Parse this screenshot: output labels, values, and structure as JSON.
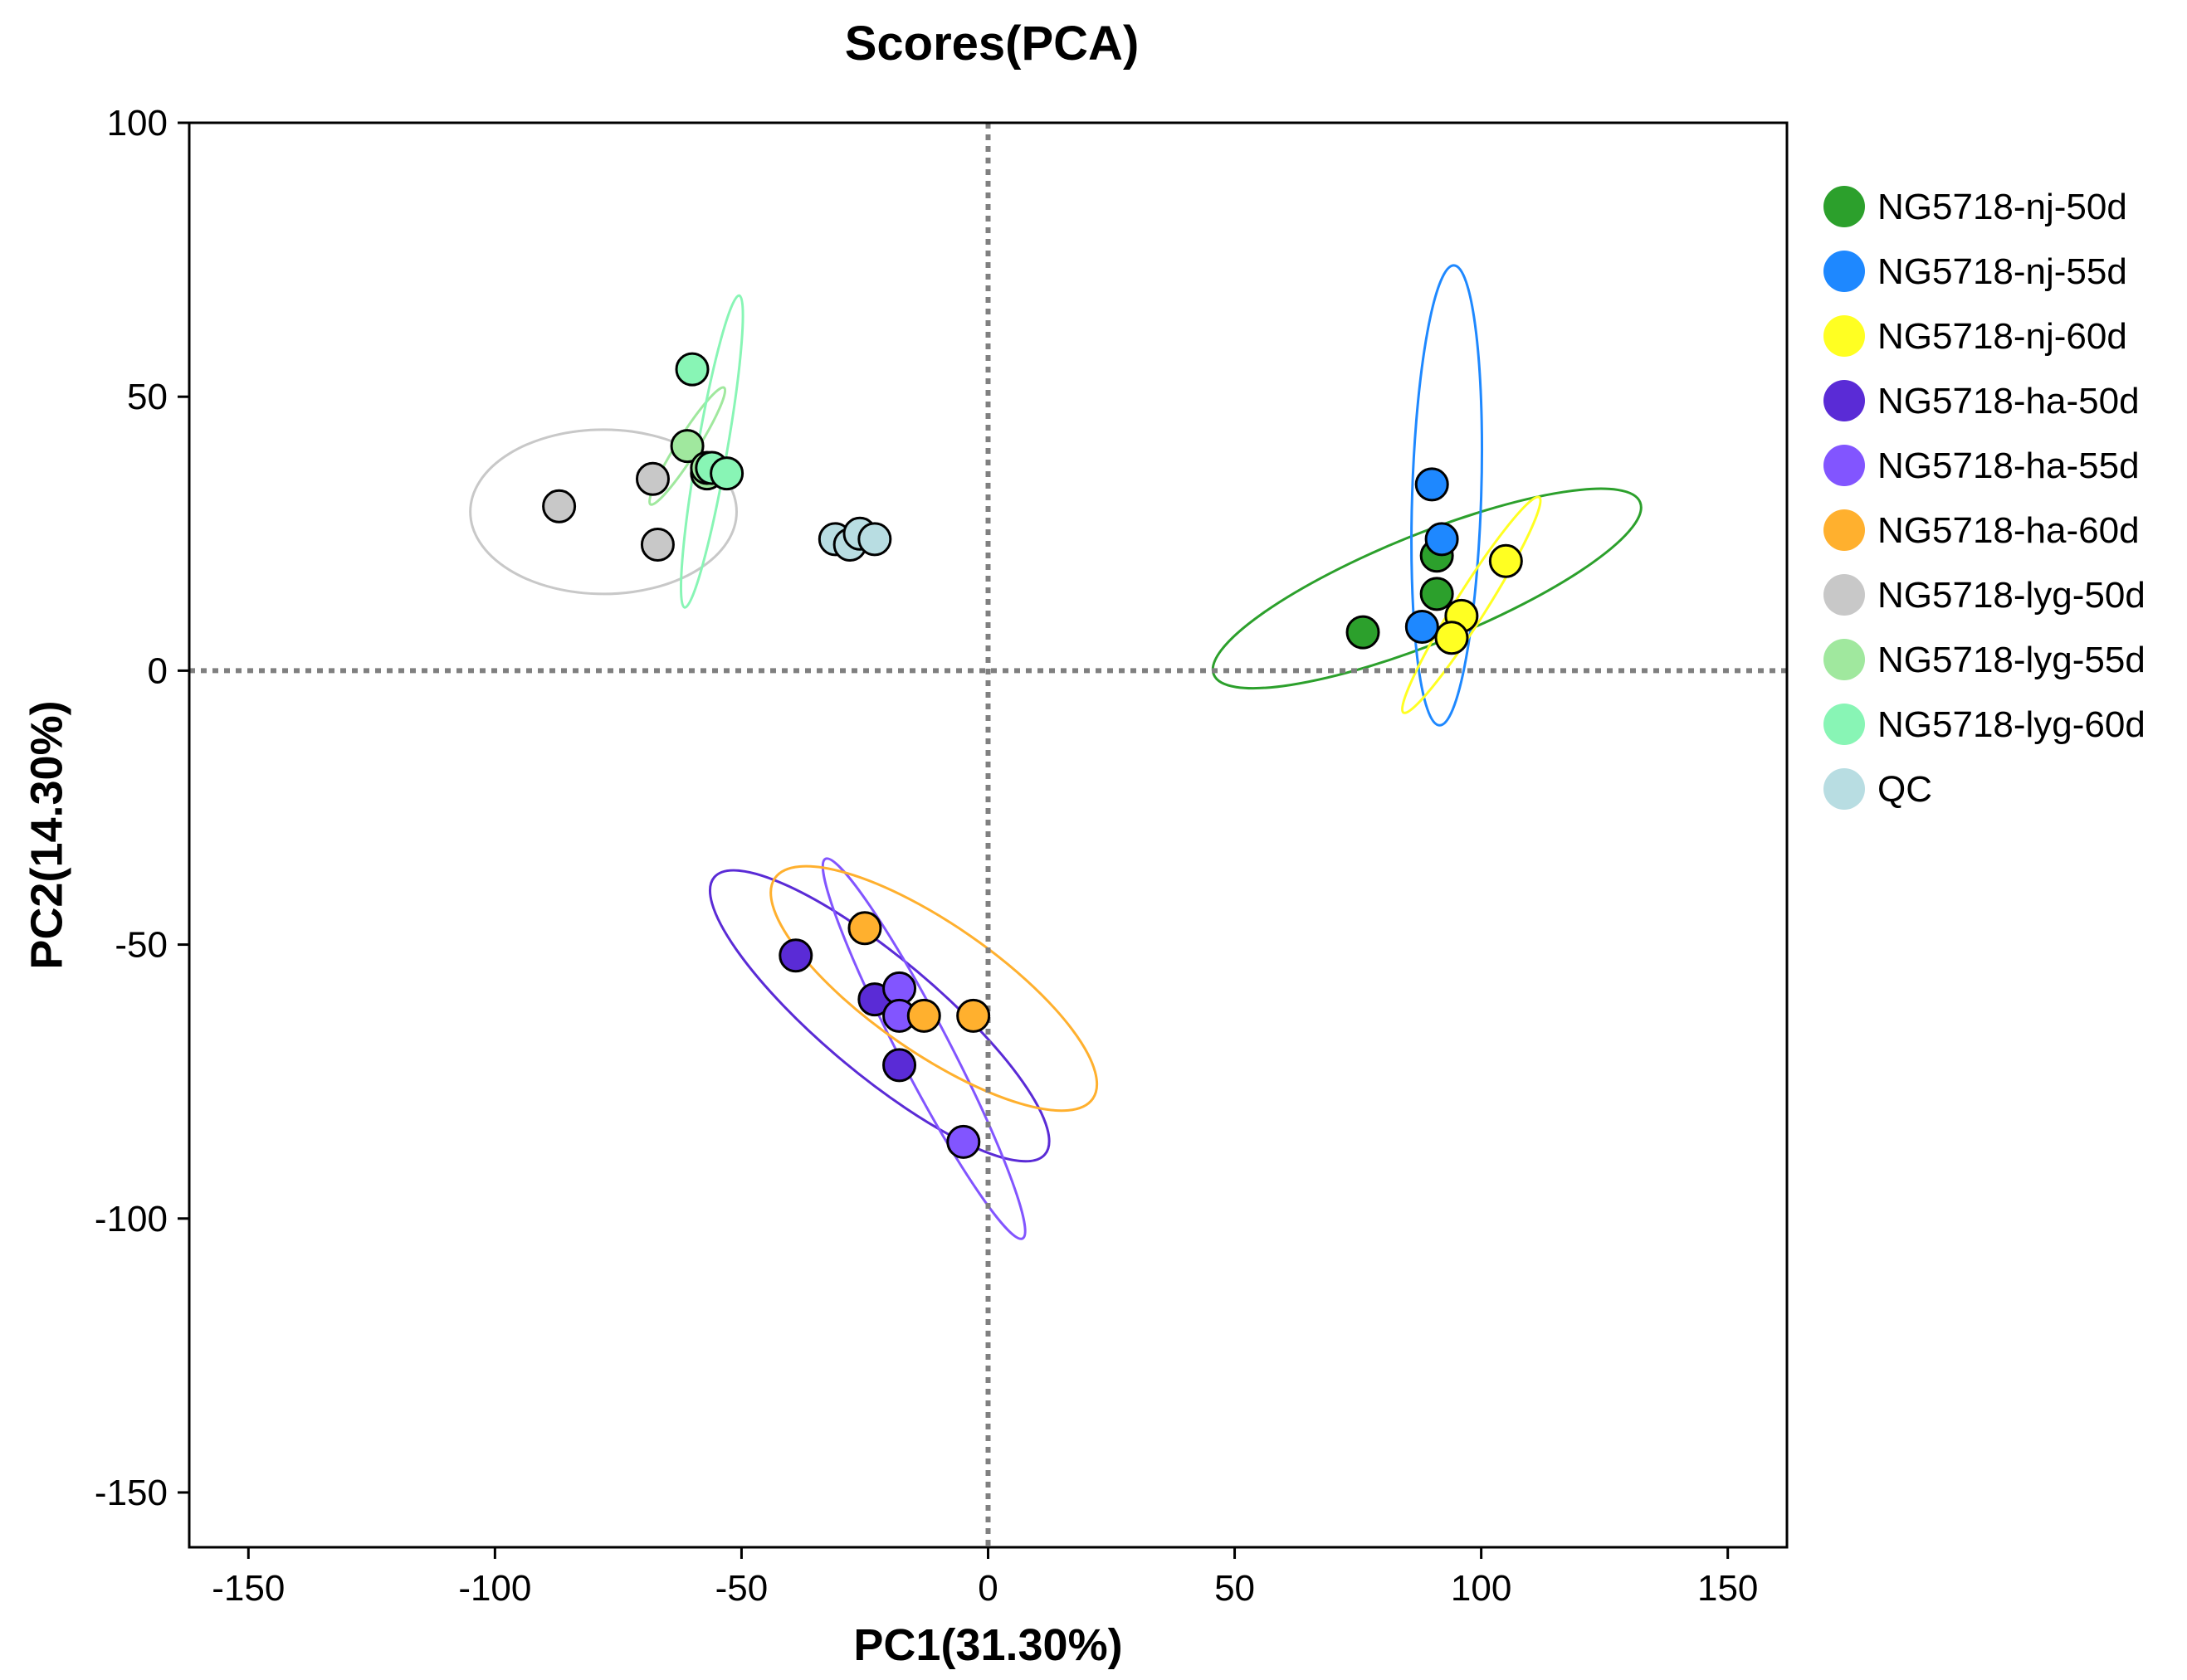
{
  "chart_data": {
    "type": "scatter",
    "title": "Scores(PCA)",
    "xlabel": "PC1(31.30%)",
    "ylabel": "PC2(14.30%)",
    "xlim": [
      -162,
      162
    ],
    "ylim": [
      -160,
      100
    ],
    "xticks": [
      -150,
      -100,
      -50,
      0,
      50,
      100,
      150
    ],
    "yticks": [
      100,
      50,
      0,
      -50,
      -100,
      -150
    ],
    "reference_lines": {
      "x": 0,
      "y": 0,
      "style": "dotted"
    },
    "legend_position": "right",
    "series": [
      {
        "name": "NG5718-nj-50d",
        "color": "#2ca02c",
        "points": [
          [
            76,
            7
          ],
          [
            91,
            14
          ],
          [
            91,
            21
          ]
        ],
        "ellipse": {
          "cx": 89,
          "cy": 15,
          "rx": 46,
          "ry": 10,
          "angle": 20
        }
      },
      {
        "name": "NG5718-nj-55d",
        "color": "#1e88ff",
        "points": [
          [
            90,
            34
          ],
          [
            92,
            24
          ],
          [
            88,
            8
          ]
        ],
        "ellipse": {
          "cx": 93,
          "cy": 32,
          "rx": 42,
          "ry": 7,
          "angle": 88
        }
      },
      {
        "name": "NG5718-nj-60d",
        "color": "#ffff22",
        "points": [
          [
            105,
            20
          ],
          [
            96,
            10
          ],
          [
            94,
            6
          ]
        ],
        "ellipse": {
          "cx": 98,
          "cy": 12,
          "rx": 24,
          "ry": 3,
          "angle": 55
        }
      },
      {
        "name": "NG5718-ha-50d",
        "color": "#5a2bd6",
        "points": [
          [
            -39,
            -52
          ],
          [
            -23,
            -60
          ],
          [
            -18,
            -72
          ]
        ],
        "ellipse": {
          "cx": -22,
          "cy": -63,
          "rx": 42,
          "ry": 11,
          "angle": -37
        }
      },
      {
        "name": "NG5718-ha-55d",
        "color": "#8255ff",
        "points": [
          [
            -18,
            -58
          ],
          [
            -18,
            -63
          ],
          [
            -5,
            -86
          ]
        ],
        "ellipse": {
          "cx": -13,
          "cy": -69,
          "rx": 40,
          "ry": 5,
          "angle": -60
        }
      },
      {
        "name": "NG5718-ha-60d",
        "color": "#ffb02e",
        "points": [
          [
            -25,
            -47
          ],
          [
            -13,
            -63
          ],
          [
            -3,
            -63
          ]
        ],
        "ellipse": {
          "cx": -11,
          "cy": -58,
          "rx": 38,
          "ry": 12,
          "angle": -32
        }
      },
      {
        "name": "NG5718-lyg-50d",
        "color": "#c8c8c8",
        "points": [
          [
            -87,
            30
          ],
          [
            -68,
            35
          ],
          [
            -67,
            23
          ]
        ],
        "ellipse": {
          "cx": -78,
          "cy": 29,
          "rx": 27,
          "ry": 15,
          "angle": 0
        }
      },
      {
        "name": "NG5718-lyg-55d",
        "color": "#a0e89e",
        "points": [
          [
            -61,
            41
          ],
          [
            -57,
            36
          ],
          [
            -57,
            37
          ]
        ],
        "ellipse": {
          "cx": -61,
          "cy": 41,
          "rx": 13,
          "ry": 2,
          "angle": 55
        }
      },
      {
        "name": "NG5718-lyg-60d",
        "color": "#88f5b5",
        "points": [
          [
            -60,
            55
          ],
          [
            -56,
            37
          ],
          [
            -53,
            36
          ]
        ],
        "ellipse": {
          "cx": -56,
          "cy": 40,
          "rx": 29,
          "ry": 3,
          "angle": 79
        }
      },
      {
        "name": "QC",
        "color": "#b8dde2",
        "points": [
          [
            -31,
            24
          ],
          [
            -28,
            23
          ],
          [
            -26,
            25
          ],
          [
            -23,
            24
          ]
        ],
        "ellipse": null
      }
    ]
  }
}
